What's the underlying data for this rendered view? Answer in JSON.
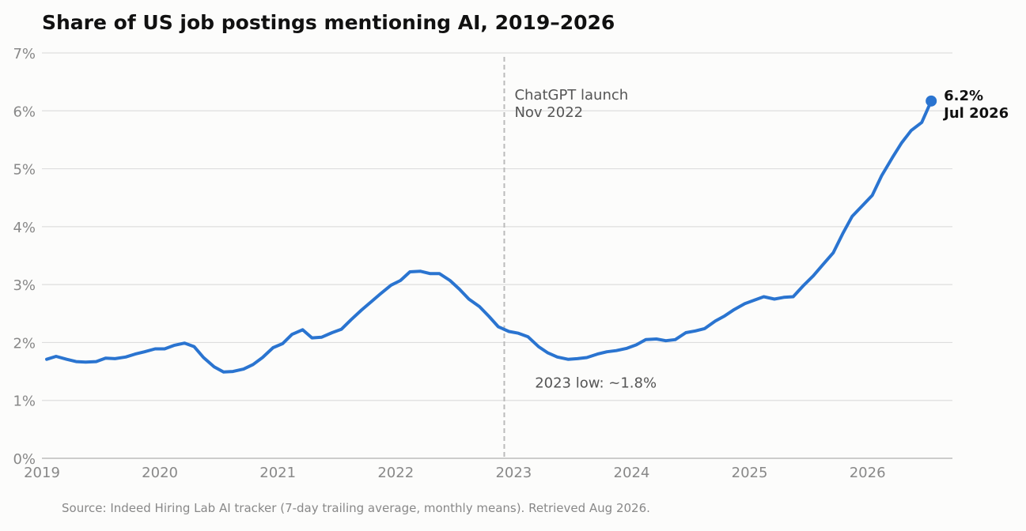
{
  "chart_data": {
    "type": "line",
    "title": "Share of US job postings mentioning AI, 2019–2026",
    "xlabel": "",
    "ylabel": "",
    "ylim": [
      0,
      7
    ],
    "yticks": [
      0,
      1,
      2,
      3,
      4,
      5,
      6,
      7
    ],
    "ytick_labels": [
      "0%",
      "1%",
      "2%",
      "3%",
      "4%",
      "5%",
      "6%",
      "7%"
    ],
    "xlim": [
      2019.0,
      2026.72
    ],
    "xticks": [
      2019,
      2020,
      2021,
      2022,
      2023,
      2024,
      2025,
      2026
    ],
    "xtick_labels": [
      "2019",
      "2020",
      "2021",
      "2022",
      "2023",
      "2024",
      "2025",
      "2026"
    ],
    "grid": true,
    "series_color": "#2a74d0",
    "x": [
      2019.04,
      2019.12,
      2019.21,
      2019.29,
      2019.37,
      2019.46,
      2019.54,
      2019.62,
      2019.71,
      2019.79,
      2019.87,
      2019.96,
      2020.04,
      2020.12,
      2020.21,
      2020.29,
      2020.37,
      2020.46,
      2020.54,
      2020.62,
      2020.71,
      2020.79,
      2020.87,
      2020.96,
      2021.04,
      2021.12,
      2021.21,
      2021.29,
      2021.37,
      2021.46,
      2021.54,
      2021.62,
      2021.71,
      2021.79,
      2021.87,
      2021.96,
      2022.04,
      2022.12,
      2022.21,
      2022.29,
      2022.37,
      2022.46,
      2022.54,
      2022.62,
      2022.71,
      2022.79,
      2022.87,
      2022.96,
      2023.04,
      2023.12,
      2023.21,
      2023.29,
      2023.37,
      2023.46,
      2023.54,
      2023.62,
      2023.71,
      2023.79,
      2023.87,
      2023.96,
      2024.04,
      2024.12,
      2024.21,
      2024.29,
      2024.37,
      2024.46,
      2024.54,
      2024.62,
      2024.71,
      2024.79,
      2024.87,
      2024.96,
      2025.04,
      2025.12,
      2025.21,
      2025.29,
      2025.37,
      2025.46,
      2025.54,
      2025.62,
      2025.71,
      2025.79,
      2025.87,
      2025.96,
      2026.04,
      2026.12,
      2026.21,
      2026.29,
      2026.37,
      2026.46,
      2026.54
    ],
    "y": [
      1.71,
      1.76,
      1.71,
      1.67,
      1.66,
      1.67,
      1.73,
      1.72,
      1.75,
      1.8,
      1.84,
      1.89,
      1.89,
      1.95,
      1.99,
      1.93,
      1.74,
      1.58,
      1.49,
      1.5,
      1.54,
      1.62,
      1.74,
      1.91,
      1.98,
      2.14,
      2.22,
      2.08,
      2.09,
      2.17,
      2.23,
      2.39,
      2.56,
      2.7,
      2.84,
      2.99,
      3.07,
      3.22,
      3.23,
      3.19,
      3.19,
      3.07,
      2.92,
      2.75,
      2.62,
      2.45,
      2.27,
      2.19,
      2.16,
      2.1,
      1.93,
      1.82,
      1.75,
      1.71,
      1.72,
      1.74,
      1.8,
      1.84,
      1.86,
      1.9,
      1.96,
      2.05,
      2.06,
      2.03,
      2.05,
      2.17,
      2.2,
      2.24,
      2.37,
      2.46,
      2.57,
      2.67,
      2.73,
      2.79,
      2.75,
      2.78,
      2.79,
      2.99,
      3.15,
      3.34,
      3.55,
      3.88,
      4.18,
      4.37,
      4.54,
      4.88,
      5.19,
      5.45,
      5.66,
      5.8,
      6.17
    ],
    "reference_line": {
      "x": 2022.92,
      "label_line1": "ChatGPT launch",
      "label_line2": "Nov 2022"
    },
    "annotations": [
      {
        "text": "2023 low: ~1.8%",
        "x": 2023.18,
        "y": 1.3
      }
    ],
    "end_label": {
      "value": "6.2%",
      "date": "Jul 2026"
    },
    "source": "Source: Indeed Hiring Lab AI tracker (7-day trailing average, monthly means). Retrieved Aug 2026."
  }
}
